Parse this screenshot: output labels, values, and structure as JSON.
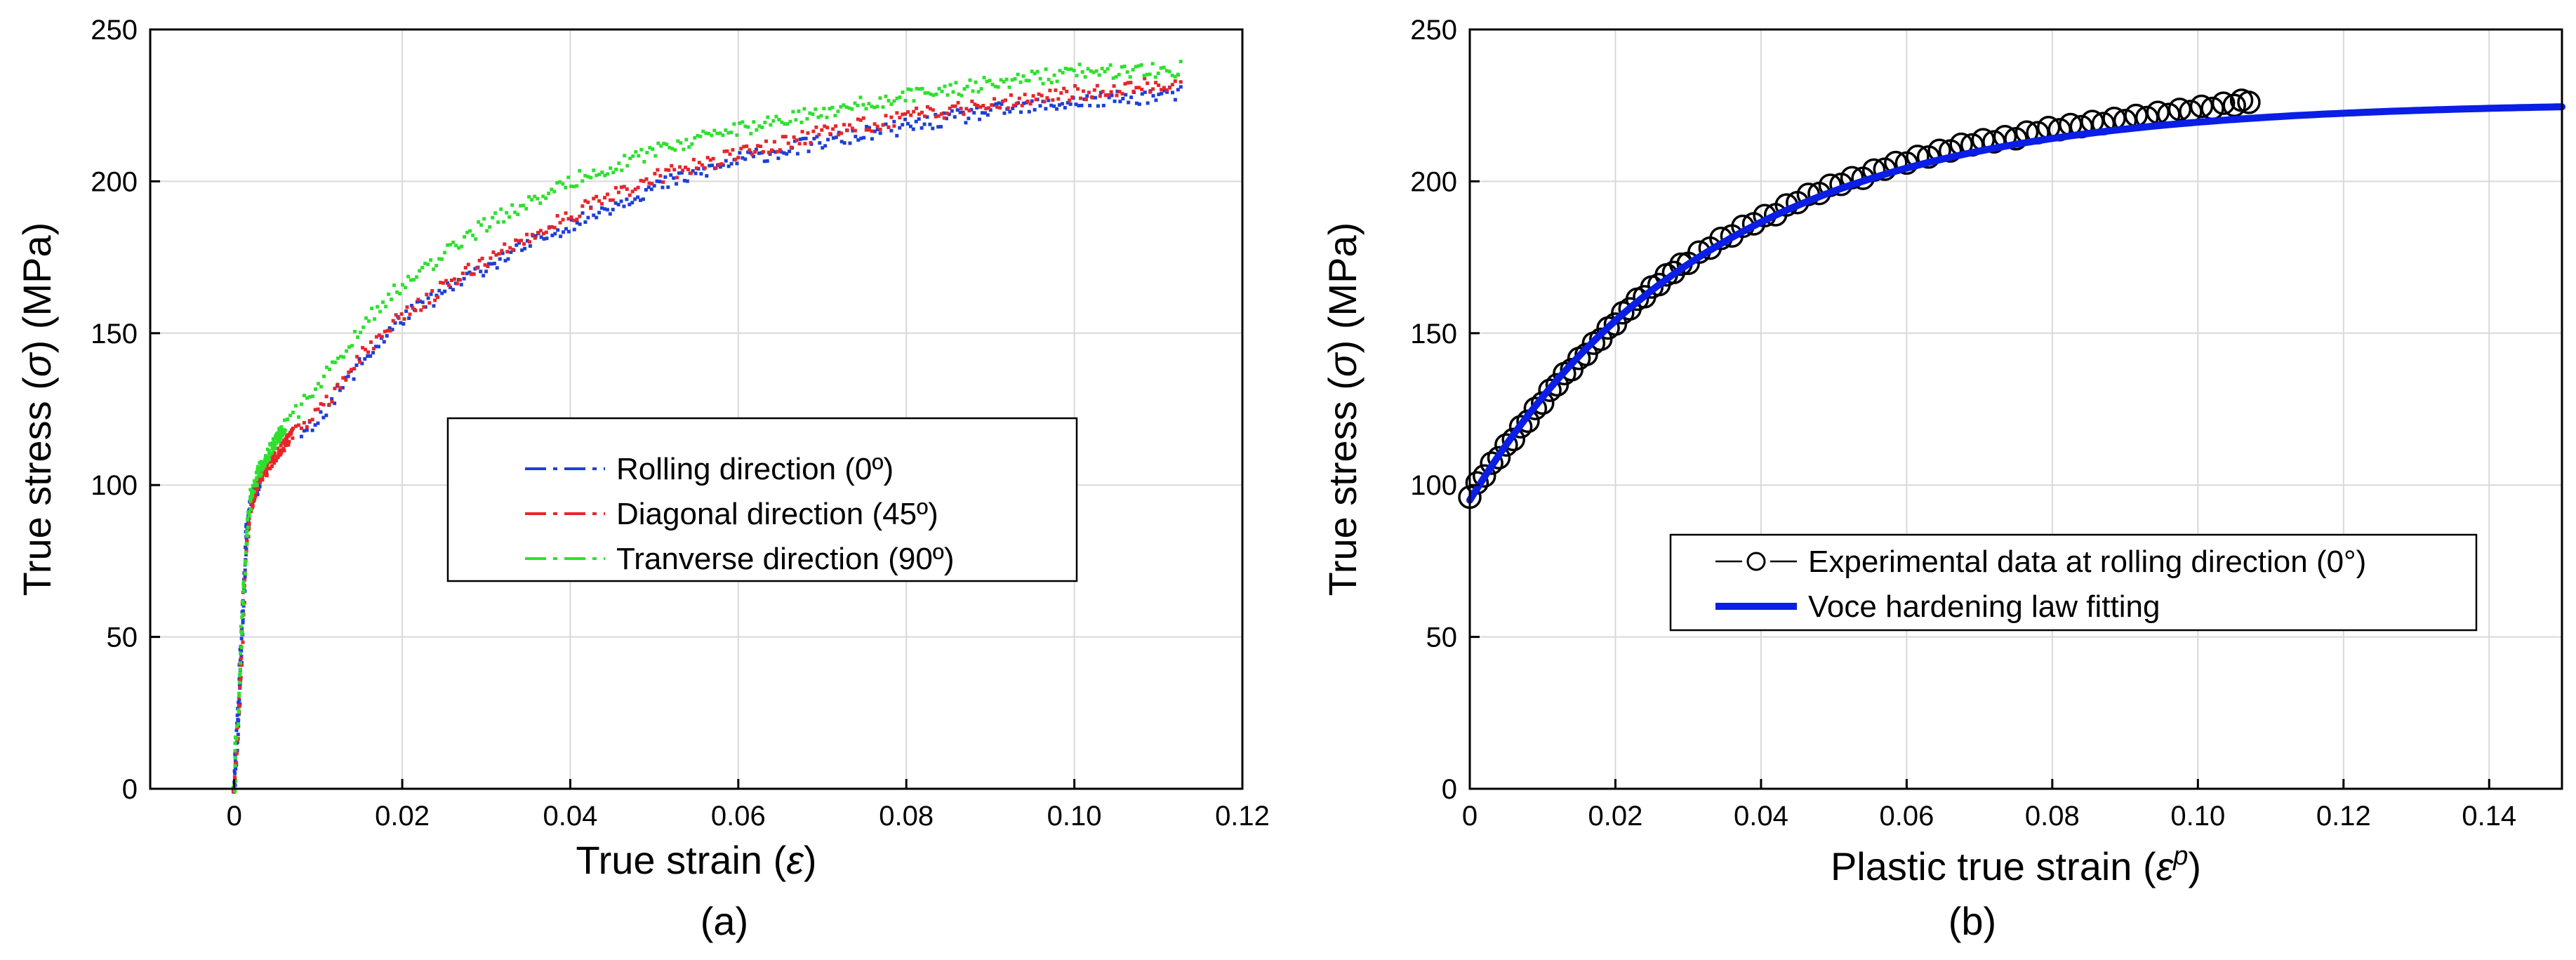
{
  "chart_data": [
    {
      "type": "scatter",
      "panel_label": "(a)",
      "xlabel_text": "True strain",
      "xlabel_symbol": "ε",
      "ylabel_text": "True stress",
      "ylabel_symbol": "σ",
      "ylabel_unit": "(MPa)",
      "xlim": [
        -0.01,
        0.12
      ],
      "ylim": [
        0,
        250
      ],
      "x_ticks": [
        0,
        0.02,
        0.04,
        0.06,
        0.08,
        0.1,
        0.12
      ],
      "x_tick_labels": [
        "0",
        "0.02",
        "0.04",
        "0.06",
        "0.08",
        "0.10",
        "0.12"
      ],
      "y_ticks": [
        0,
        50,
        100,
        150,
        200,
        250
      ],
      "y_tick_labels": [
        "0",
        "50",
        "100",
        "150",
        "200",
        "250"
      ],
      "grid": true,
      "legend_position": "center",
      "series": [
        {
          "name": "Rolling direction (0º)",
          "color": "#1f3fd6",
          "style": "dash-dot",
          "x": [
            0,
            0.0005,
            0.001,
            0.0015,
            0.002,
            0.003,
            0.008,
            0.01,
            0.015,
            0.02,
            0.03,
            0.04,
            0.05,
            0.06,
            0.07,
            0.08,
            0.09,
            0.1,
            0.113
          ],
          "y": [
            0,
            25,
            55,
            85,
            95,
            100,
            115,
            122,
            140,
            155,
            172,
            186,
            198,
            207,
            213,
            218,
            223,
            226,
            229
          ]
        },
        {
          "name": "Diagonal direction (45º)",
          "color": "#e8252a",
          "style": "dash-dot",
          "x": [
            0,
            0.0005,
            0.001,
            0.0015,
            0.002,
            0.003,
            0.005,
            0.007,
            0.01,
            0.015,
            0.02,
            0.03,
            0.04,
            0.05,
            0.06,
            0.07,
            0.08,
            0.09,
            0.1,
            0.113
          ],
          "y": [
            0,
            25,
            55,
            80,
            93,
            102,
            110,
            117,
            124,
            142,
            156,
            174,
            189,
            201,
            209,
            216,
            221,
            226,
            229,
            233
          ]
        },
        {
          "name": "Tranverse direction (90º)",
          "color": "#2ee02e",
          "style": "dash-dot",
          "x": [
            0,
            0.0005,
            0.001,
            0.0015,
            0.002,
            0.003,
            0.004,
            0.005,
            0.006,
            0.01,
            0.015,
            0.02,
            0.03,
            0.04,
            0.05,
            0.06,
            0.07,
            0.08,
            0.09,
            0.1,
            0.113
          ],
          "y": [
            0,
            30,
            60,
            85,
            97,
            105,
            110,
            115,
            119,
            133,
            152,
            166,
            186,
            200,
            210,
            217,
            223,
            228,
            232,
            236,
            237
          ]
        }
      ]
    },
    {
      "type": "line",
      "panel_label": "(b)",
      "xlabel_text": "Plastic true strain",
      "xlabel_symbol": "ε",
      "xlabel_superscript": "p",
      "ylabel_text": "True stress",
      "ylabel_symbol": "σ",
      "ylabel_unit": "(MPa)",
      "xlim": [
        0,
        0.15
      ],
      "ylim": [
        0,
        250
      ],
      "x_ticks": [
        0,
        0.02,
        0.04,
        0.06,
        0.08,
        0.1,
        0.12,
        0.14
      ],
      "x_tick_labels": [
        "0",
        "0.02",
        "0.04",
        "0.06",
        "0.08",
        "0.10",
        "0.12",
        "0.14"
      ],
      "y_ticks": [
        0,
        50,
        100,
        150,
        200,
        250
      ],
      "y_tick_labels": [
        "0",
        "50",
        "100",
        "150",
        "200",
        "250"
      ],
      "grid": true,
      "legend_position": "lower-right",
      "series": [
        {
          "name": "Experimental data at rolling direction (0°)",
          "color": "#000000",
          "marker": "open-circle",
          "x": [
            0.0,
            0.002,
            0.004,
            0.006,
            0.008,
            0.01,
            0.012,
            0.014,
            0.016,
            0.018,
            0.02,
            0.022,
            0.024,
            0.026,
            0.028,
            0.03,
            0.033,
            0.036,
            0.039,
            0.042,
            0.045,
            0.048,
            0.051,
            0.054,
            0.057,
            0.06,
            0.063,
            0.066,
            0.069,
            0.072,
            0.075,
            0.078,
            0.081,
            0.084,
            0.087,
            0.09,
            0.093,
            0.096,
            0.099,
            0.102,
            0.105,
            0.107
          ],
          "y": [
            96,
            103,
            109,
            115,
            121,
            127,
            133,
            138,
            143,
            148,
            153,
            158,
            162,
            166,
            170,
            173,
            178,
            182,
            186,
            189,
            193,
            196,
            199,
            201,
            204,
            206,
            208,
            210,
            212,
            213,
            214,
            216,
            217,
            218,
            219,
            220,
            221,
            222,
            223,
            224,
            225,
            226
          ]
        },
        {
          "name": "Voce hardening law fitting",
          "color": "#0a1ee6",
          "model": "voce",
          "sigma0": 95,
          "Q": 131,
          "b": 30
        }
      ]
    }
  ]
}
